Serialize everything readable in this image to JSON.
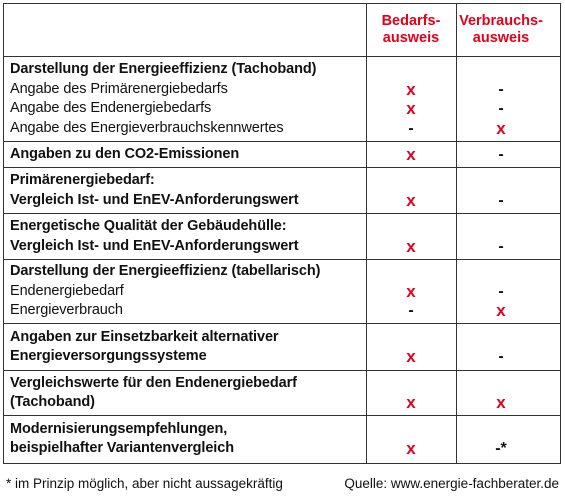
{
  "header": {
    "columns": [
      [
        "Bedarfs-",
        "ausweis"
      ],
      [
        "Verbrauchs-",
        "ausweis"
      ]
    ]
  },
  "rows": [
    {
      "lines": [
        {
          "label": "Darstellung der Energieeffizienz (Tachoband)",
          "bold": true
        },
        {
          "label": "Angabe des Primärenergiebedarfs",
          "bedarf": "x",
          "verbrauch": "-"
        },
        {
          "label": "Angabe des Endenergiebedarfs",
          "bedarf": "x",
          "verbrauch": "-"
        },
        {
          "label": "Angabe des Energieverbrauchskennwertes",
          "bedarf": "-",
          "verbrauch": "x"
        }
      ]
    },
    {
      "lines": [
        {
          "label": "Angaben zu den CO2-Emissionen",
          "bold": true,
          "bedarf": "x",
          "verbrauch": "-"
        }
      ]
    },
    {
      "lines": [
        {
          "label": "Primärenergiebedarf:",
          "bold": true
        },
        {
          "label": "Vergleich Ist- und EnEV-Anforderungswert",
          "bold": true,
          "bedarf": "x",
          "verbrauch": "-"
        }
      ]
    },
    {
      "lines": [
        {
          "label": "Energetische Qualität der Gebäudehülle:",
          "bold": true
        },
        {
          "label": "Vergleich Ist- und EnEV-Anforderungswert",
          "bold": true,
          "bedarf": "x",
          "verbrauch": "-"
        }
      ]
    },
    {
      "lines": [
        {
          "label": "Darstellung der Energieeffizienz (tabellarisch)",
          "bold": true
        },
        {
          "label": "Endenergiebedarf",
          "bedarf": "x",
          "verbrauch": "-"
        },
        {
          "label": "Energieverbrauch",
          "bedarf": "-",
          "verbrauch": "x"
        }
      ]
    },
    {
      "lines": [
        {
          "label": "Angaben zur Einsetzbarkeit alternativer",
          "bold": true
        },
        {
          "label": "Energieversorgungssysteme",
          "bold": true,
          "bedarf": "x",
          "verbrauch": "-"
        }
      ]
    },
    {
      "lines": [
        {
          "label": "Vergleichswerte für den Endenergiebedarf",
          "bold": true
        },
        {
          "label": "(Tachoband)",
          "bold": true,
          "bedarf": "x",
          "verbrauch": "x"
        }
      ]
    },
    {
      "lines": [
        {
          "label": "Modernisierungsempfehlungen,",
          "bold": true
        },
        {
          "label": "beispielhafter Variantenvergleich",
          "bold": true,
          "bedarf": "x",
          "verbrauch": "-*"
        }
      ]
    }
  ],
  "footnote": "* im Prinzip möglich, aber nicht aussagekräftig",
  "source": "Quelle: www.energie-fachberater.de"
}
